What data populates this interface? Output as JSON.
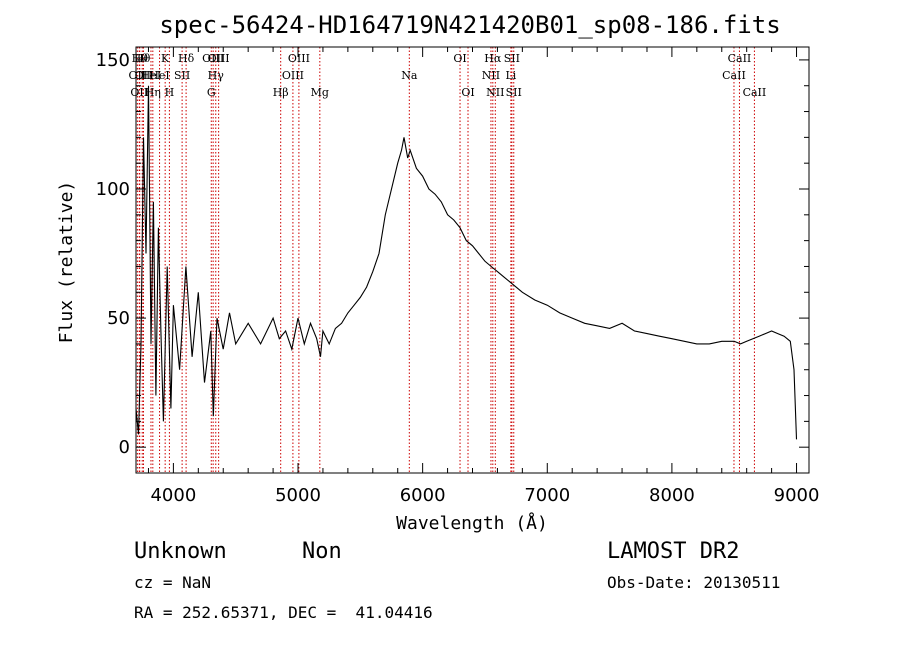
{
  "chart_data": {
    "type": "line",
    "title": "spec-56424-HD164719N421420B01_sp08-186.fits",
    "xlabel": "Wavelength (Å)",
    "ylabel": "Flux (relative)",
    "xlim": [
      3700,
      9100
    ],
    "ylim": [
      -10,
      155
    ],
    "x_ticks": [
      4000,
      5000,
      6000,
      7000,
      8000,
      9000
    ],
    "y_ticks": [
      0,
      50,
      100,
      150
    ],
    "grid": false,
    "legend": "none",
    "line_color": "#000000",
    "marker_color": "#cc0000",
    "series": [
      {
        "x": [
          3700,
          3720,
          3740,
          3760,
          3780,
          3800,
          3820,
          3840,
          3860,
          3880,
          3900,
          3920,
          3950,
          3980,
          4000,
          4050,
          4100,
          4150,
          4200,
          4250,
          4300,
          4320,
          4350,
          4400,
          4450,
          4500,
          4600,
          4700,
          4800,
          4850,
          4900,
          4950,
          5000,
          5050,
          5100,
          5150,
          5180,
          5200,
          5250,
          5300,
          5350,
          5400,
          5450,
          5500,
          5550,
          5600,
          5650,
          5700,
          5750,
          5800,
          5830,
          5850,
          5880,
          5900,
          5950,
          6000,
          6050,
          6100,
          6150,
          6200,
          6250,
          6300,
          6350,
          6400,
          6450,
          6500,
          6550,
          6600,
          6650,
          6700,
          6750,
          6800,
          6900,
          7000,
          7100,
          7200,
          7300,
          7400,
          7500,
          7600,
          7700,
          7800,
          7900,
          8000,
          8100,
          8200,
          8300,
          8400,
          8500,
          8550,
          8600,
          8650,
          8700,
          8750,
          8800,
          8850,
          8900,
          8950,
          8980,
          9000
        ],
        "y": [
          15,
          5,
          40,
          120,
          75,
          140,
          40,
          95,
          20,
          85,
          45,
          10,
          70,
          15,
          55,
          30,
          70,
          35,
          60,
          25,
          45,
          12,
          50,
          38,
          52,
          40,
          48,
          40,
          50,
          42,
          45,
          38,
          50,
          40,
          48,
          42,
          35,
          45,
          40,
          46,
          48,
          52,
          55,
          58,
          62,
          68,
          75,
          90,
          100,
          110,
          115,
          120,
          112,
          115,
          108,
          105,
          100,
          98,
          95,
          90,
          88,
          85,
          80,
          78,
          75,
          72,
          70,
          68,
          66,
          64,
          62,
          60,
          57,
          55,
          52,
          50,
          48,
          47,
          46,
          48,
          45,
          44,
          43,
          42,
          41,
          40,
          40,
          41,
          41,
          40,
          41,
          42,
          43,
          44,
          45,
          44,
          43,
          41,
          30,
          3
        ]
      }
    ],
    "lines": [
      {
        "x": 3711,
        "label": "OII",
        "row": 1
      },
      {
        "x": 3726,
        "label": "OII",
        "row": 2
      },
      {
        "x": 3730,
        "label": "Hθ",
        "row": 0
      },
      {
        "x": 3750,
        "label": "Hθ",
        "row": 0
      },
      {
        "x": 3760,
        "label": "OII",
        "row": 1
      },
      {
        "x": 3820,
        "label": "HeI",
        "row": 1
      },
      {
        "x": 3835,
        "label": "Hη",
        "row": 2
      },
      {
        "x": 3889,
        "label": "HeI",
        "row": 1
      },
      {
        "x": 3934,
        "label": "K",
        "row": 0
      },
      {
        "x": 3968,
        "label": "H",
        "row": 2
      },
      {
        "x": 4070,
        "label": "SII",
        "row": 1
      },
      {
        "x": 4102,
        "label": "Hδ",
        "row": 0
      },
      {
        "x": 4304,
        "label": "G",
        "row": 2
      },
      {
        "x": 4319,
        "label": "OIII",
        "row": 0
      },
      {
        "x": 4340,
        "label": "Hγ",
        "row": 1
      },
      {
        "x": 4363,
        "label": "OIII",
        "row": 0
      },
      {
        "x": 4861,
        "label": "Hβ",
        "row": 2
      },
      {
        "x": 4959,
        "label": "OIII",
        "row": 1
      },
      {
        "x": 5007,
        "label": "OIII",
        "row": 0
      },
      {
        "x": 5175,
        "label": "Mg",
        "row": 2
      },
      {
        "x": 5893,
        "label": "Na",
        "row": 1
      },
      {
        "x": 6300,
        "label": "OI",
        "row": 0
      },
      {
        "x": 6364,
        "label": "OI",
        "row": 2
      },
      {
        "x": 6548,
        "label": "NII",
        "row": 1
      },
      {
        "x": 6563,
        "label": "Hα",
        "row": 0
      },
      {
        "x": 6583,
        "label": "NII",
        "row": 2
      },
      {
        "x": 6708,
        "label": "Li",
        "row": 1
      },
      {
        "x": 6716,
        "label": "SII",
        "row": 0
      },
      {
        "x": 6731,
        "label": "SII",
        "row": 2
      },
      {
        "x": 8498,
        "label": "CaII",
        "row": 1
      },
      {
        "x": 8542,
        "label": "CaII",
        "row": 0
      },
      {
        "x": 8662,
        "label": "CaII",
        "row": 2
      }
    ]
  },
  "info": {
    "class_label": "Unknown",
    "subclass_label": "Non",
    "survey": "LAMOST DR2",
    "cz": "cz = NaN",
    "obs_date": "Obs-Date: 20130511",
    "radec": "RA = 252.65371, DEC =  41.04416"
  }
}
